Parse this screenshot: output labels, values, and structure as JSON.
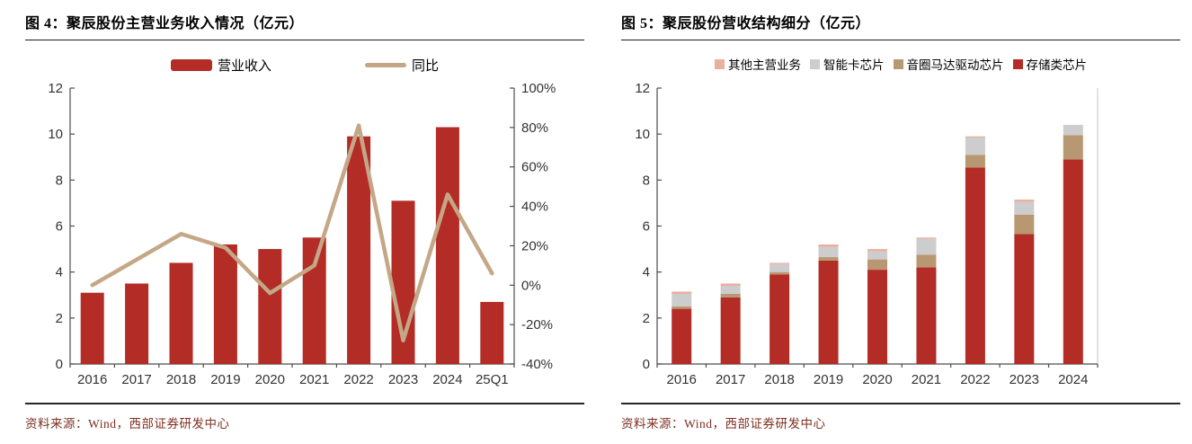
{
  "panels": [
    {
      "title": "图 4：聚辰股份主营业务收入情况（亿元）",
      "source": "资料来源：Wind，西部证券研发中心"
    },
    {
      "title": "图 5：聚辰股份营收结构细分（亿元）",
      "source": "资料来源：Wind，西部证券研发中心"
    }
  ],
  "chart_data": [
    {
      "type": "bar",
      "subtype": "bar-line-combo",
      "title": "图 4：聚辰股份主营业务收入情况（亿元）",
      "categories": [
        "2016",
        "2017",
        "2018",
        "2019",
        "2020",
        "2021",
        "2022",
        "2023",
        "2024",
        "25Q1"
      ],
      "series": [
        {
          "name": "营业收入",
          "kind": "bar",
          "axis": "left",
          "color": "#B32C26",
          "values": [
            3.1,
            3.5,
            4.4,
            5.2,
            5.0,
            5.5,
            9.9,
            7.1,
            10.3,
            2.7
          ]
        },
        {
          "name": "同比",
          "kind": "line",
          "axis": "right",
          "color": "#C4A787",
          "values": [
            0,
            13,
            26,
            19,
            -4,
            10,
            81,
            -28,
            46,
            6
          ]
        }
      ],
      "left_axis": {
        "min": 0,
        "max": 12,
        "step": 2,
        "ticks": [
          "0",
          "2",
          "4",
          "6",
          "8",
          "10",
          "12"
        ]
      },
      "right_axis": {
        "min": -40,
        "max": 100,
        "step": 20,
        "ticks": [
          "-40%",
          "-20%",
          "0%",
          "20%",
          "40%",
          "60%",
          "80%",
          "100%"
        ]
      },
      "legend_position": "top",
      "grid": false
    },
    {
      "type": "bar",
      "subtype": "stacked-bar",
      "title": "图 5：聚辰股份营收结构细分（亿元）",
      "categories": [
        "2016",
        "2017",
        "2018",
        "2019",
        "2020",
        "2021",
        "2022",
        "2023",
        "2024"
      ],
      "series": [
        {
          "name": "存储类芯片",
          "color": "#B32C26",
          "values": [
            2.4,
            2.9,
            3.9,
            4.5,
            4.1,
            4.2,
            8.55,
            5.65,
            8.9
          ]
        },
        {
          "name": "音圈马达驱动芯片",
          "color": "#B89872",
          "values": [
            0.1,
            0.15,
            0.1,
            0.15,
            0.45,
            0.55,
            0.55,
            0.85,
            1.05
          ]
        },
        {
          "name": "智能卡芯片",
          "color": "#CDCDCD",
          "values": [
            0.55,
            0.35,
            0.35,
            0.45,
            0.35,
            0.7,
            0.75,
            0.55,
            0.45
          ]
        },
        {
          "name": "其他主营业务",
          "color": "#EBAF9F",
          "values": [
            0.1,
            0.1,
            0.05,
            0.1,
            0.1,
            0.05,
            0.05,
            0.1,
            0
          ]
        }
      ],
      "legend_order_display": [
        "其他主营业务",
        "智能卡芯片",
        "音圈马达驱动芯片",
        "存储类芯片"
      ],
      "y_axis": {
        "min": 0,
        "max": 12,
        "step": 2,
        "ticks": [
          "0",
          "2",
          "4",
          "6",
          "8",
          "10",
          "12"
        ]
      },
      "legend_position": "top",
      "grid": false
    }
  ]
}
